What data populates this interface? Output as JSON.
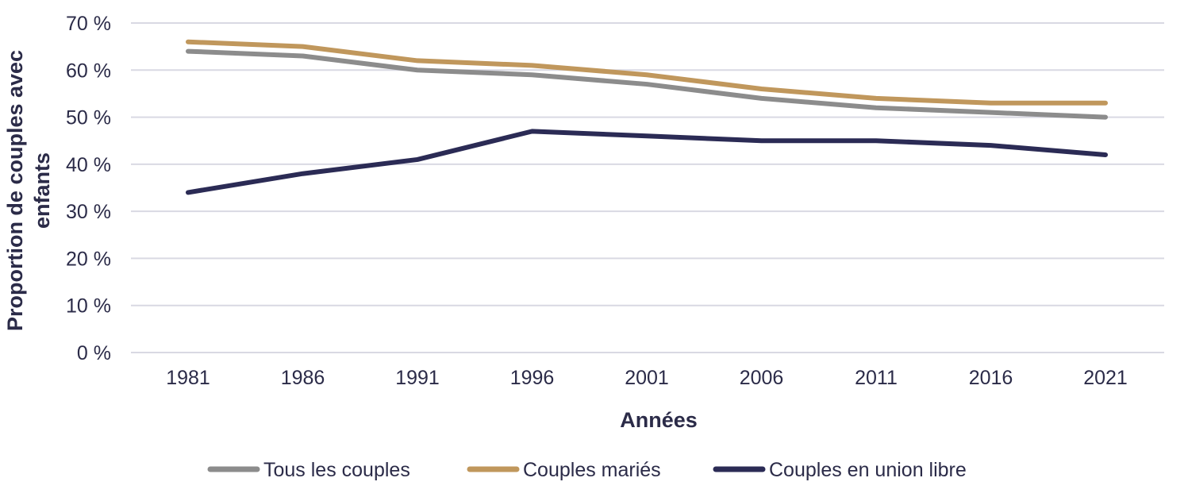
{
  "chart_data": {
    "type": "line",
    "title": "",
    "xlabel": "Années",
    "ylabel_lines": [
      "Proportion de couples avec",
      "enfants"
    ],
    "categories": [
      "1981",
      "1986",
      "1991",
      "1996",
      "2001",
      "2006",
      "2011",
      "2016",
      "2021"
    ],
    "y_ticks": [
      0,
      10,
      20,
      30,
      40,
      50,
      60,
      70
    ],
    "y_tick_labels": [
      "0 %",
      "10 %",
      "20 %",
      "30 %",
      "40 %",
      "50 %",
      "60 %",
      "70 %"
    ],
    "ylim": [
      0,
      70
    ],
    "grid": "horizontal",
    "legend_position": "bottom",
    "series": [
      {
        "name": "Tous les couples",
        "color": "#8c8c8c",
        "values": [
          64,
          63,
          60,
          59,
          57,
          54,
          52,
          51,
          50
        ]
      },
      {
        "name": "Couples mariés",
        "color": "#c0975c",
        "values": [
          66,
          65,
          62,
          61,
          59,
          56,
          54,
          53,
          53
        ]
      },
      {
        "name": "Couples en union libre",
        "color": "#2b2b55",
        "values": [
          34,
          38,
          41,
          47,
          46,
          45,
          45,
          44,
          42
        ]
      }
    ]
  }
}
